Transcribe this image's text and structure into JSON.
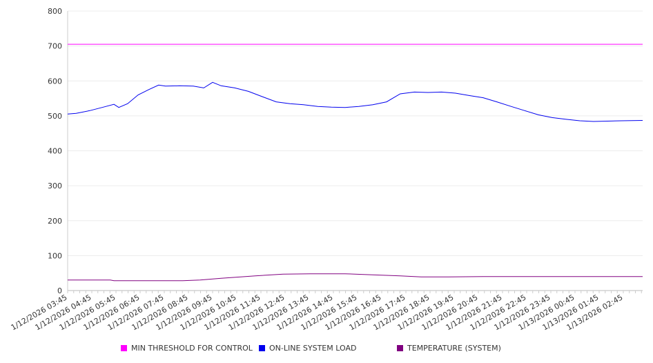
{
  "chart_data": {
    "type": "line",
    "title": "",
    "xlabel": "",
    "ylabel": "",
    "ylim": [
      0,
      800
    ],
    "yticks": [
      0,
      100,
      200,
      300,
      400,
      500,
      600,
      700,
      800
    ],
    "x_unit": "minutes since 1/12/2026 03:45",
    "xlim": [
      0,
      1428
    ],
    "xtick_labels": [
      "1/12/2026 03:45",
      "1/12/2026 04:45",
      "1/12/2026 05:45",
      "1/12/2026 06:45",
      "1/12/2026 07:45",
      "1/12/2026 08:45",
      "1/12/2026 09:45",
      "1/12/2026 10:45",
      "1/12/2026 11:45",
      "1/12/2026 12:45",
      "1/12/2026 13:45",
      "1/12/2026 14:45",
      "1/12/2026 15:45",
      "1/12/2026 16:45",
      "1/12/2026 17:45",
      "1/12/2026 18:45",
      "1/12/2026 19:45",
      "1/12/2026 20:45",
      "1/12/2026 21:45",
      "1/12/2026 22:45",
      "1/12/2026 23:45",
      "1/13/2026 00:45",
      "1/13/2026 01:45",
      "1/13/2026 02:45"
    ],
    "grid": true,
    "legend_position": "bottom",
    "series": [
      {
        "name": "MIN THRESHOLD FOR CONTROL",
        "color": "#ff00ff",
        "x": [
          0,
          1428
        ],
        "values": [
          705,
          705
        ]
      },
      {
        "name": "ON-LINE SYSTEM LOAD",
        "color": "#0000ee",
        "x": [
          0,
          21,
          55,
          89,
          115,
          127,
          149,
          175,
          201,
          226,
          243,
          278,
          312,
          338,
          360,
          381,
          415,
          449,
          483,
          518,
          552,
          586,
          621,
          655,
          689,
          723,
          758,
          792,
          826,
          861,
          895,
          929,
          963,
          998,
          1032,
          1066,
          1101,
          1135,
          1169,
          1203,
          1238,
          1272,
          1306,
          1341,
          1375,
          1428
        ],
        "values": [
          505,
          507,
          515,
          525,
          533,
          524,
          535,
          560,
          575,
          588,
          585,
          586,
          585,
          580,
          596,
          586,
          580,
          570,
          555,
          540,
          535,
          532,
          527,
          525,
          524,
          527,
          532,
          540,
          563,
          568,
          567,
          568,
          565,
          558,
          552,
          540,
          527,
          515,
          503,
          495,
          490,
          486,
          484,
          485,
          486,
          487
        ]
      },
      {
        "name": "TEMPERATURE (SYSTEM)",
        "color": "#800080",
        "x": [
          0,
          106,
          115,
          286,
          329,
          381,
          466,
          535,
          603,
          689,
          758,
          826,
          878,
          946,
          1032,
          1428
        ],
        "values": [
          30,
          30,
          28,
          28,
          30,
          35,
          42,
          47,
          48,
          48,
          45,
          42,
          39,
          39,
          40,
          40
        ]
      }
    ]
  }
}
